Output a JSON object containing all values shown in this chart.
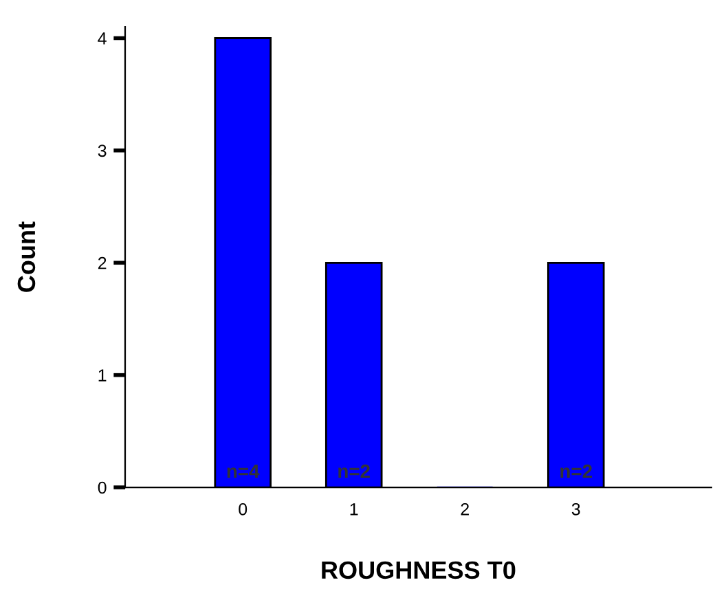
{
  "chart_data": {
    "type": "bar",
    "xlabel": "ROUGHNESS T0",
    "ylabel": "Count",
    "categories": [
      "0",
      "1",
      "2",
      "3"
    ],
    "values": [
      4,
      2,
      0,
      2
    ],
    "value_labels": [
      "n=4",
      "n=2",
      null,
      "n=2"
    ],
    "color": "#0000ff",
    "ylim": [
      0,
      4.1
    ],
    "yticks": [
      0,
      1,
      2,
      3,
      4
    ],
    "grid": false,
    "legend": false
  }
}
